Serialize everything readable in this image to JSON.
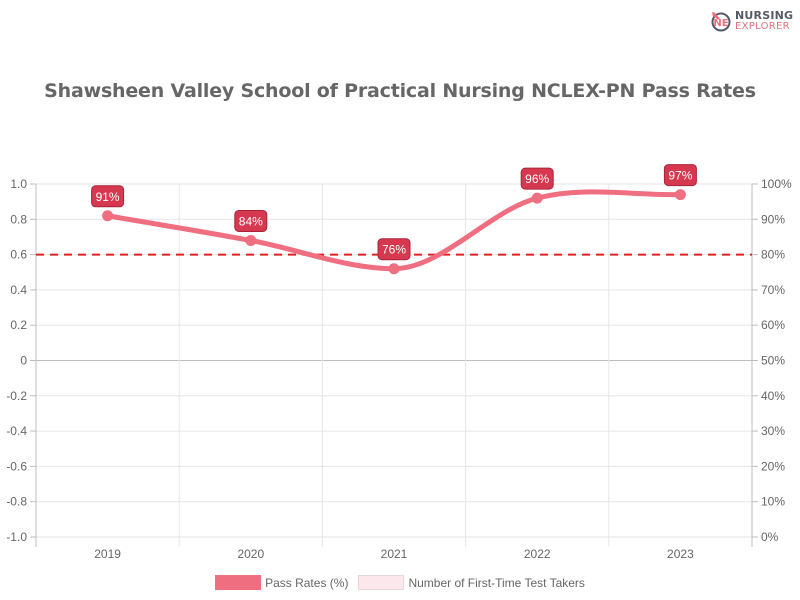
{
  "logo": {
    "line1": "NURSING",
    "line2": "EXPLORER",
    "mark": "NE"
  },
  "title": "Shawsheen Valley School of Practical Nursing NCLEX-PN Pass Rates",
  "legend": [
    {
      "label": "Pass Rates (%)",
      "color": "#ef6f81"
    },
    {
      "label": "Number of First-Time Test Takers",
      "color": "#fbe7ec"
    }
  ],
  "chart_data": {
    "type": "line",
    "title": "Shawsheen Valley School of Practical Nursing NCLEX-PN Pass Rates",
    "categories": [
      "2019",
      "2020",
      "2021",
      "2022",
      "2023"
    ],
    "series": [
      {
        "name": "Pass Rates (%)",
        "values": [
          91,
          84,
          76,
          96,
          97
        ],
        "axis": "right",
        "color": "#ef6f81"
      },
      {
        "name": "Number of First-Time Test Takers",
        "values": [],
        "axis": "left",
        "color": "#fbe7ec"
      }
    ],
    "data_labels": [
      "91%",
      "84%",
      "76%",
      "96%",
      "97%"
    ],
    "reference_line": {
      "value": 80,
      "axis": "right",
      "style": "dashed",
      "color": "#e02020"
    },
    "left_axis": {
      "ticks": [
        "1.0",
        "0.8",
        "0.6",
        "0.4",
        "0.2",
        "0",
        "-0.2",
        "-0.4",
        "-0.6",
        "-0.8",
        "-1.0"
      ],
      "ylim": [
        -1.0,
        1.0
      ]
    },
    "right_axis": {
      "ticks": [
        "100%",
        "90%",
        "80%",
        "70%",
        "60%",
        "50%",
        "40%",
        "30%",
        "20%",
        "10%",
        "0%"
      ],
      "ylim": [
        0,
        100
      ]
    },
    "xlabel": "",
    "ylabel": "",
    "grid": true,
    "legend_position": "bottom"
  }
}
